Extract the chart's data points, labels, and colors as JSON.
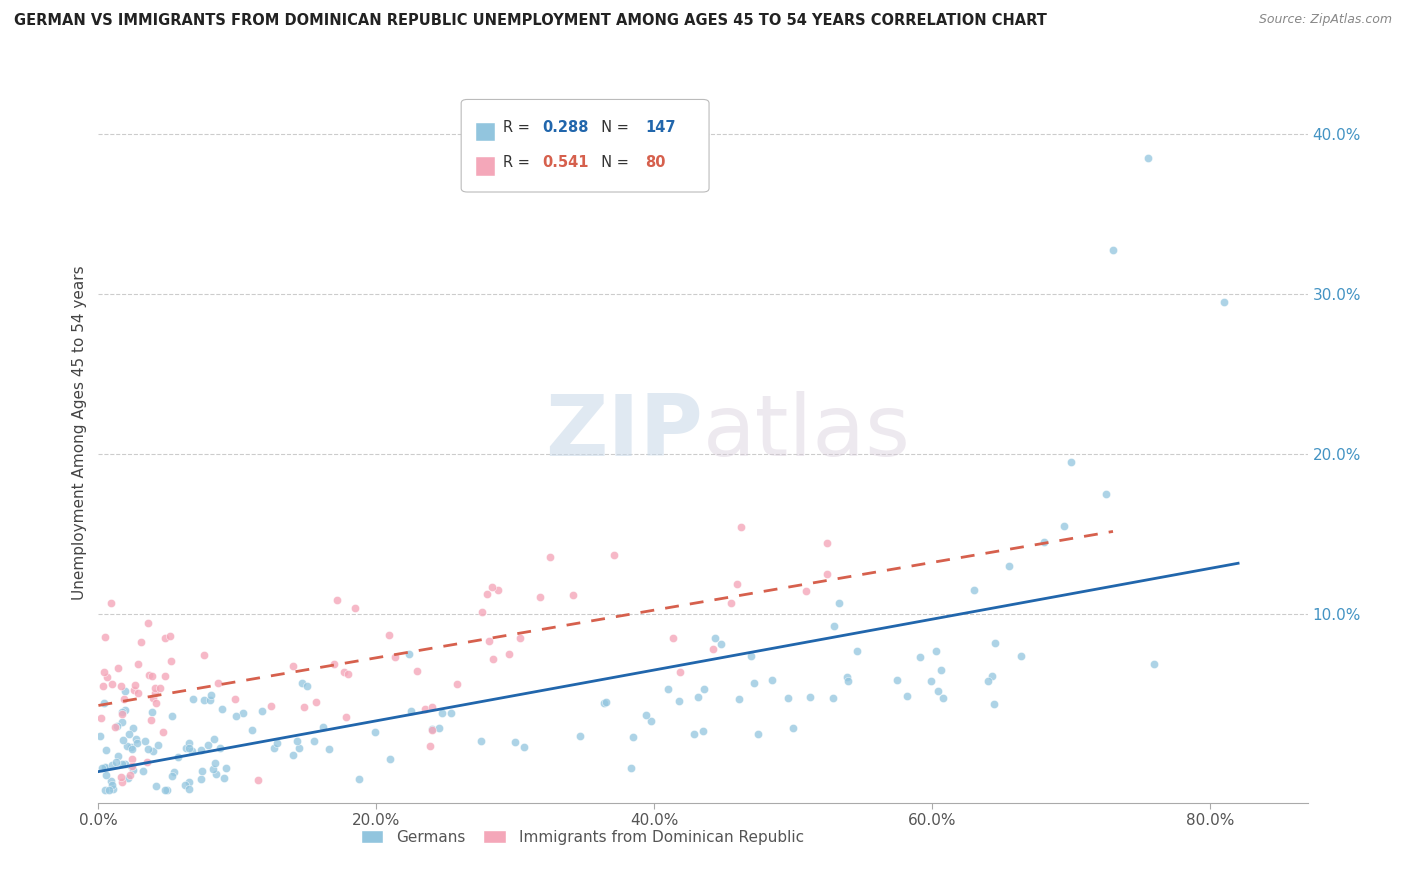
{
  "title": "GERMAN VS IMMIGRANTS FROM DOMINICAN REPUBLIC UNEMPLOYMENT AMONG AGES 45 TO 54 YEARS CORRELATION CHART",
  "source": "Source: ZipAtlas.com",
  "ylabel": "Unemployment Among Ages 45 to 54 years",
  "watermark_zip": "ZIP",
  "watermark_atlas": "atlas",
  "legend_german_R": "0.288",
  "legend_german_N": "147",
  "legend_dr_R": "0.541",
  "legend_dr_N": "80",
  "german_scatter_color": "#92c5de",
  "dr_scatter_color": "#f4a7b9",
  "german_line_color": "#2166ac",
  "dr_line_color": "#d6604d",
  "ytick_color": "#4393c3",
  "xtick_color": "#555555",
  "ytick_values": [
    0.0,
    0.1,
    0.2,
    0.3,
    0.4
  ],
  "ytick_labels": [
    "",
    "10.0%",
    "20.0%",
    "30.0%",
    "40.0%"
  ],
  "xtick_values": [
    0.0,
    0.2,
    0.4,
    0.6,
    0.8
  ],
  "xtick_labels": [
    "0.0%",
    "20.0%",
    "40.0%",
    "60.0%",
    "80.0%"
  ],
  "xlim": [
    0.0,
    0.87
  ],
  "ylim": [
    -0.018,
    0.445
  ],
  "background_color": "#ffffff",
  "grid_color": "#cccccc"
}
